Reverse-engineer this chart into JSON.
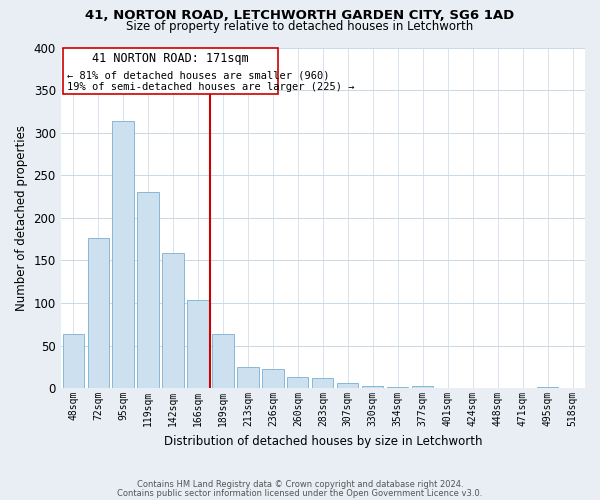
{
  "title": "41, NORTON ROAD, LETCHWORTH GARDEN CITY, SG6 1AD",
  "subtitle": "Size of property relative to detached houses in Letchworth",
  "xlabel": "Distribution of detached houses by size in Letchworth",
  "ylabel": "Number of detached properties",
  "bin_labels": [
    "48sqm",
    "72sqm",
    "95sqm",
    "119sqm",
    "142sqm",
    "166sqm",
    "189sqm",
    "213sqm",
    "236sqm",
    "260sqm",
    "283sqm",
    "307sqm",
    "330sqm",
    "354sqm",
    "377sqm",
    "401sqm",
    "424sqm",
    "448sqm",
    "471sqm",
    "495sqm",
    "518sqm"
  ],
  "bar_heights": [
    63,
    176,
    314,
    230,
    159,
    103,
    63,
    25,
    22,
    13,
    12,
    6,
    3,
    1,
    2,
    0,
    0,
    0,
    0,
    1,
    0
  ],
  "bar_color": "#cce0f0",
  "bar_edge_color": "#7ab0d4",
  "ylim": [
    0,
    400
  ],
  "yticks": [
    0,
    50,
    100,
    150,
    200,
    250,
    300,
    350,
    400
  ],
  "annotation_title": "41 NORTON ROAD: 171sqm",
  "annotation_line1": "← 81% of detached houses are smaller (960)",
  "annotation_line2": "19% of semi-detached houses are larger (225) →",
  "vline_color": "#cc0000",
  "ann_box_color": "#cc0000",
  "footnote1": "Contains HM Land Registry data © Crown copyright and database right 2024.",
  "footnote2": "Contains public sector information licensed under the Open Government Licence v3.0.",
  "background_color": "#e8eef4",
  "plot_bg_color": "#ffffff",
  "grid_color": "#c8d8e8"
}
